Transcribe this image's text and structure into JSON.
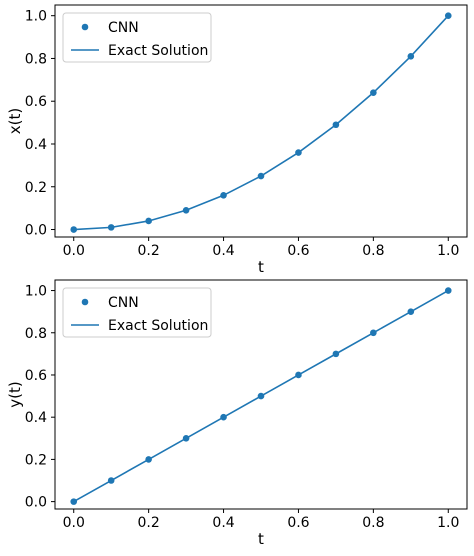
{
  "chart_data": [
    {
      "type": "line",
      "xlabel": "t",
      "ylabel": "x(t)",
      "xlim": [
        -0.05,
        1.05
      ],
      "ylim": [
        -0.035,
        1.05
      ],
      "xticks": [
        0.0,
        0.2,
        0.4,
        0.6,
        0.8,
        1.0
      ],
      "xtick_labels": [
        "0.0",
        "0.2",
        "0.4",
        "0.6",
        "0.8",
        "1.0"
      ],
      "yticks": [
        0.0,
        0.2,
        0.4,
        0.6,
        0.8,
        1.0
      ],
      "ytick_labels": [
        "0.0",
        "0.2",
        "0.4",
        "0.6",
        "0.8",
        "1.0"
      ],
      "grid": false,
      "legend_position": "top-left",
      "series": [
        {
          "name": "CNN",
          "style": "markers",
          "color": "#1f77b4",
          "x": [
            0.0,
            0.1,
            0.2,
            0.3,
            0.4,
            0.5,
            0.6,
            0.7,
            0.8,
            0.9,
            1.0
          ],
          "y": [
            0.0,
            0.01,
            0.04,
            0.09,
            0.16,
            0.25,
            0.36,
            0.49,
            0.64,
            0.81,
            1.0
          ]
        },
        {
          "name": "Exact Solution",
          "style": "line",
          "color": "#1f77b4",
          "x": [
            0.0,
            0.1,
            0.2,
            0.3,
            0.4,
            0.5,
            0.6,
            0.7,
            0.8,
            0.9,
            1.0
          ],
          "y": [
            0.0,
            0.01,
            0.04,
            0.09,
            0.16,
            0.25,
            0.36,
            0.49,
            0.64,
            0.81,
            1.0
          ]
        }
      ]
    },
    {
      "type": "line",
      "xlabel": "t",
      "ylabel": "y(t)",
      "xlim": [
        -0.05,
        1.05
      ],
      "ylim": [
        -0.035,
        1.05
      ],
      "xticks": [
        0.0,
        0.2,
        0.4,
        0.6,
        0.8,
        1.0
      ],
      "xtick_labels": [
        "0.0",
        "0.2",
        "0.4",
        "0.6",
        "0.8",
        "1.0"
      ],
      "yticks": [
        0.0,
        0.2,
        0.4,
        0.6,
        0.8,
        1.0
      ],
      "ytick_labels": [
        "0.0",
        "0.2",
        "0.4",
        "0.6",
        "0.8",
        "1.0"
      ],
      "grid": false,
      "legend_position": "top-left",
      "series": [
        {
          "name": "CNN",
          "style": "markers",
          "color": "#1f77b4",
          "x": [
            0.0,
            0.1,
            0.2,
            0.3,
            0.4,
            0.5,
            0.6,
            0.7,
            0.8,
            0.9,
            1.0
          ],
          "y": [
            0.0,
            0.1,
            0.2,
            0.3,
            0.4,
            0.5,
            0.6,
            0.7,
            0.8,
            0.9,
            1.0
          ]
        },
        {
          "name": "Exact Solution",
          "style": "line",
          "color": "#1f77b4",
          "x": [
            0.0,
            0.1,
            0.2,
            0.3,
            0.4,
            0.5,
            0.6,
            0.7,
            0.8,
            0.9,
            1.0
          ],
          "y": [
            0.0,
            0.1,
            0.2,
            0.3,
            0.4,
            0.5,
            0.6,
            0.7,
            0.8,
            0.9,
            1.0
          ]
        }
      ]
    }
  ]
}
